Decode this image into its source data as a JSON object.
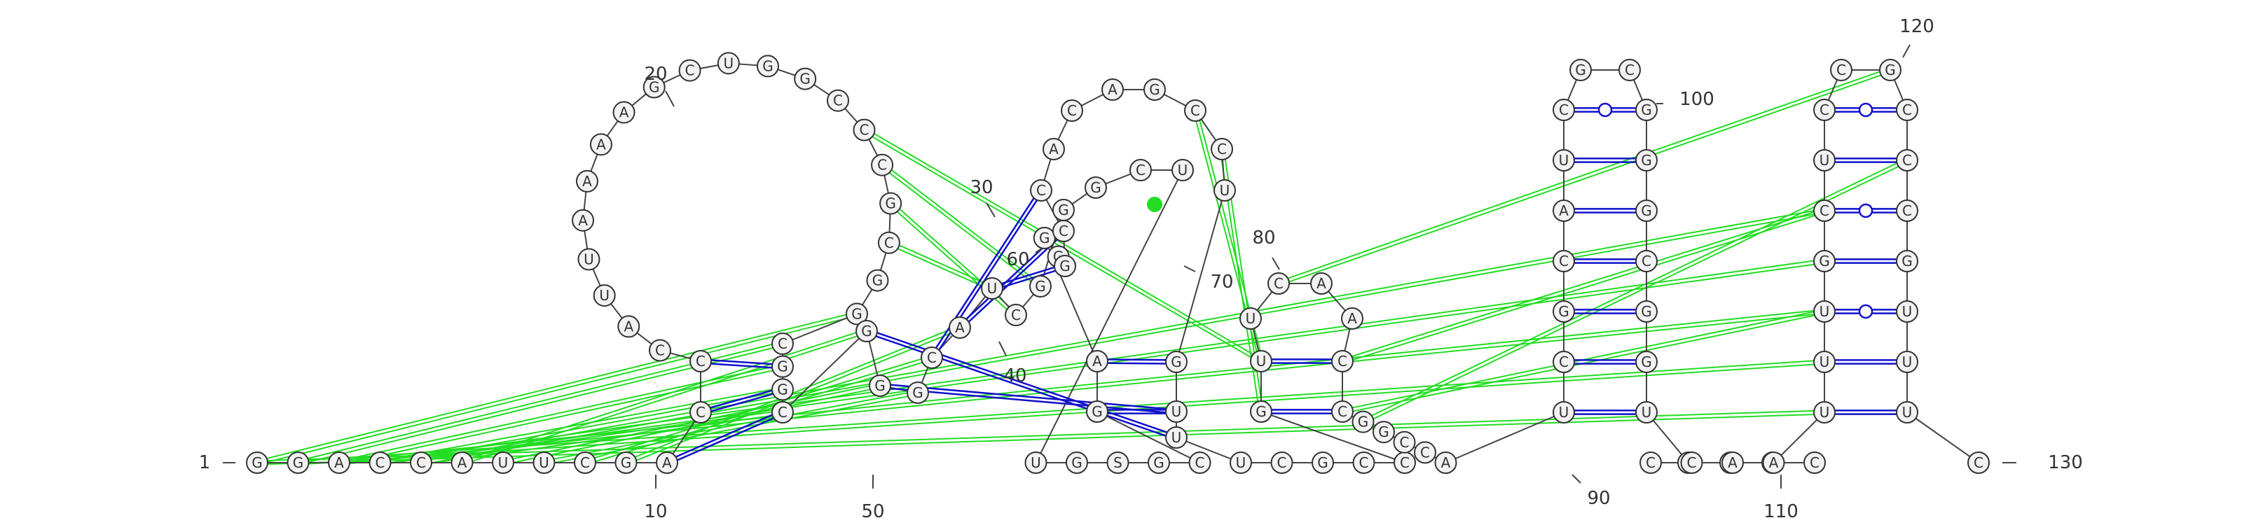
{
  "colors": {
    "base_pair": "#1010cc",
    "pseudoknot": "#22dd22",
    "gu_dot": "#22dd22",
    "nucleotide_fill": "#f2f2f2"
  },
  "sequence": [
    "G",
    "G",
    "A",
    "C",
    "C",
    "A",
    "U",
    "U",
    "C",
    "G",
    "A",
    "C",
    "C",
    "C",
    "A",
    "U",
    "U",
    "A",
    "A",
    "A",
    "A",
    "G",
    "C",
    "U",
    "G",
    "G",
    "C",
    "C",
    "C",
    "G",
    "C",
    "G",
    "G",
    "C",
    "G",
    "G",
    "C",
    "G",
    "G",
    "G",
    "C",
    "A",
    "U",
    "C",
    "G",
    "G",
    "G",
    "C",
    "U",
    "U",
    "G",
    "S",
    "G",
    "C",
    "G",
    "A",
    "G",
    "G",
    "G",
    "C",
    "C",
    "A",
    "C",
    "A",
    "G",
    "C",
    "C",
    "U",
    "G",
    "U",
    "U",
    "U",
    "C",
    "G",
    "C",
    "C",
    "G",
    "U",
    "U",
    "C",
    "A",
    "A",
    "C",
    "C",
    "G",
    "G",
    "C",
    "C",
    "A",
    "U",
    "C",
    "G",
    "C",
    "A",
    "U",
    "C",
    "G",
    "C",
    "G",
    "G",
    "G",
    "C",
    "G",
    "G",
    "U",
    "A",
    "A",
    "A",
    "C",
    "C",
    "C",
    "A",
    "A",
    "U",
    "U",
    "U",
    "G",
    "C",
    "U",
    "C",
    "C",
    "G",
    "C",
    "C",
    "C",
    "G",
    "U",
    "U",
    "U",
    "C"
  ],
  "labels": [
    {
      "index": 1,
      "text": "1"
    },
    {
      "index": 10,
      "text": "10"
    },
    {
      "index": 20,
      "text": "20"
    },
    {
      "index": 30,
      "text": "30"
    },
    {
      "index": 40,
      "text": "40"
    },
    {
      "index": 50,
      "text": "50"
    },
    {
      "index": 60,
      "text": "60"
    },
    {
      "index": 70,
      "text": "70"
    },
    {
      "index": 80,
      "text": "80"
    },
    {
      "index": 90,
      "text": "90"
    },
    {
      "index": 100,
      "text": "100"
    },
    {
      "index": 110,
      "text": "110"
    },
    {
      "index": 120,
      "text": "120"
    },
    {
      "index": 130,
      "text": "130"
    }
  ]
}
